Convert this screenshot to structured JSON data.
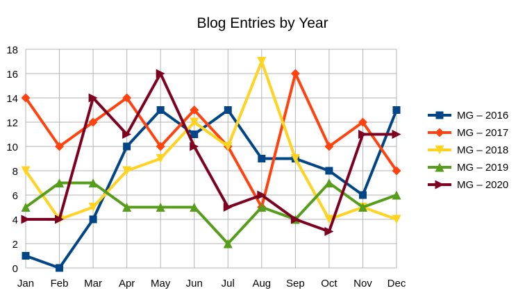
{
  "chart_data": {
    "type": "line",
    "title": "Blog Entries by Year",
    "xlabel": "",
    "ylabel": "",
    "categories": [
      "Jan",
      "Feb",
      "Mar",
      "Apr",
      "May",
      "Jun",
      "Jul",
      "Aug",
      "Sep",
      "Oct",
      "Nov",
      "Dec"
    ],
    "ylim": [
      0,
      18
    ],
    "yticks": [
      "0",
      "2",
      "4",
      "6",
      "8",
      "10",
      "12",
      "14",
      "16",
      "18"
    ],
    "grid": true,
    "legend_position": "right",
    "series": [
      {
        "name": "MG – 2016",
        "color": "#004586",
        "marker": "square",
        "values": [
          1,
          0,
          4,
          10,
          13,
          11,
          13,
          9,
          9,
          8,
          6,
          13
        ]
      },
      {
        "name": "MG – 2017",
        "color": "#ff420e",
        "marker": "diamond",
        "values": [
          14,
          10,
          12,
          14,
          10,
          13,
          10,
          5,
          16,
          10,
          12,
          8
        ]
      },
      {
        "name": "MG – 2018",
        "color": "#ffd320",
        "marker": "triangle-down",
        "values": [
          8,
          4,
          5,
          8,
          9,
          12,
          10,
          17,
          9,
          4,
          5,
          4
        ]
      },
      {
        "name": "MG – 2019",
        "color": "#579d1c",
        "marker": "triangle-up",
        "values": [
          5,
          7,
          7,
          5,
          5,
          5,
          2,
          5,
          4,
          7,
          5,
          6
        ]
      },
      {
        "name": "MG – 2020",
        "color": "#7e0021",
        "marker": "triangle-right",
        "values": [
          4,
          4,
          14,
          11,
          16,
          10,
          5,
          6,
          4,
          3,
          11,
          11
        ]
      }
    ]
  }
}
